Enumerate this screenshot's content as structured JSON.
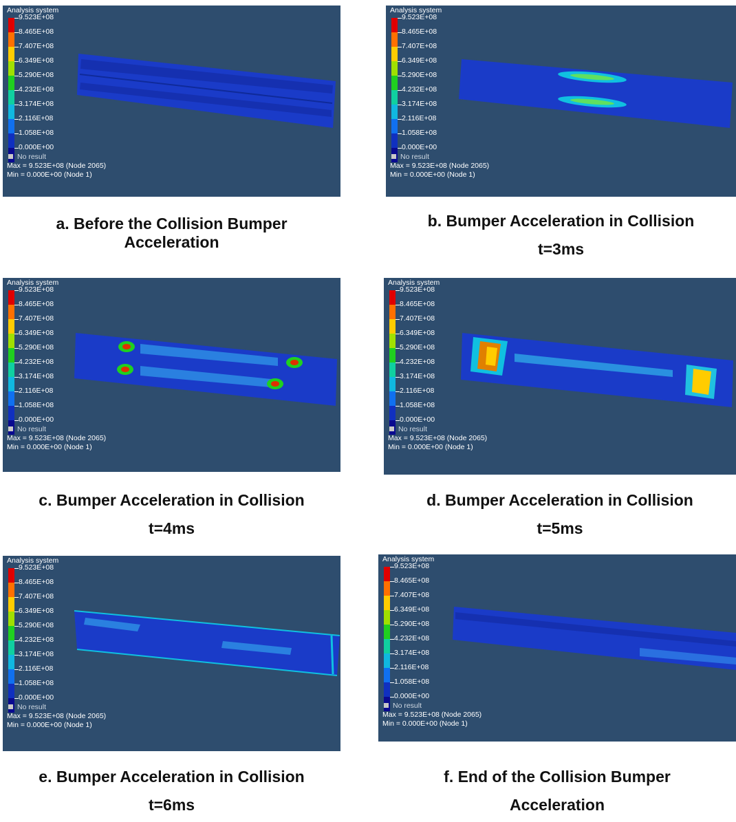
{
  "legend": {
    "system_label": "Analysis system",
    "values": [
      "9.523E+08",
      "8.465E+08",
      "7.407E+08",
      "6.349E+08",
      "5.290E+08",
      "4.232E+08",
      "3.174E+08",
      "2.116E+08",
      "1.058E+08",
      "0.000E+00"
    ],
    "colors": [
      "#e00000",
      "#ff7000",
      "#ffcc00",
      "#a0e000",
      "#20d020",
      "#10d0a0",
      "#10b8e0",
      "#1070f0",
      "#1030c0",
      "#0a0a90"
    ],
    "no_result": "No result",
    "max": "Max = 9.523E+08 (Node 2065)",
    "min": "Min = 0.000E+00 (Node 1)"
  },
  "panels": [
    {
      "id": "a",
      "caption_line1": "a. Before the Collision Bumper",
      "caption_line2": "Acceleration"
    },
    {
      "id": "b",
      "caption_line1": "b. Bumper Acceleration in Collision",
      "caption_line2": "t=3ms"
    },
    {
      "id": "c",
      "caption_line1": "c. Bumper Acceleration in Collision",
      "caption_line2": "t=4ms"
    },
    {
      "id": "d",
      "caption_line1": "d. Bumper Acceleration in Collision",
      "caption_line2": "t=5ms"
    },
    {
      "id": "e",
      "caption_line1": "e. Bumper Acceleration in Collision",
      "caption_line2": "t=6ms"
    },
    {
      "id": "f",
      "caption_line1": "f. End of the Collision Bumper",
      "caption_line2": "Acceleration"
    }
  ]
}
